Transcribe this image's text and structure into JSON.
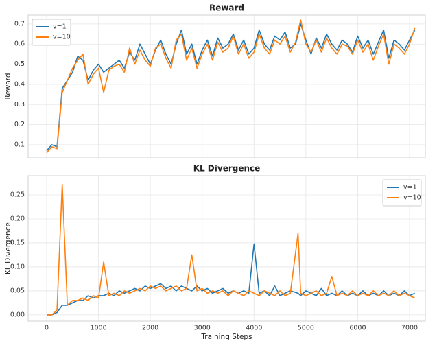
{
  "chart_data": [
    {
      "type": "line",
      "title": "Reward",
      "ylabel": "Reward",
      "x": [
        0,
        100,
        200,
        300,
        400,
        500,
        600,
        700,
        800,
        900,
        1000,
        1100,
        1200,
        1300,
        1400,
        1500,
        1600,
        1700,
        1800,
        1900,
        2000,
        2100,
        2200,
        2300,
        2400,
        2500,
        2600,
        2700,
        2800,
        2900,
        3000,
        3100,
        3200,
        3300,
        3400,
        3500,
        3600,
        3700,
        3800,
        3900,
        4000,
        4100,
        4200,
        4300,
        4400,
        4500,
        4600,
        4700,
        4800,
        4900,
        5000,
        5100,
        5200,
        5300,
        5400,
        5500,
        5600,
        5700,
        5800,
        5900,
        6000,
        6100,
        6200,
        6300,
        6400,
        6500,
        6600,
        6700,
        6800,
        6900,
        7000,
        7100
      ],
      "series": [
        {
          "name": "v=1",
          "color": "#1f77b4",
          "values": [
            0.07,
            0.1,
            0.09,
            0.38,
            0.42,
            0.46,
            0.54,
            0.52,
            0.42,
            0.47,
            0.5,
            0.46,
            0.48,
            0.5,
            0.52,
            0.48,
            0.56,
            0.52,
            0.6,
            0.55,
            0.5,
            0.57,
            0.62,
            0.55,
            0.5,
            0.6,
            0.67,
            0.55,
            0.6,
            0.5,
            0.57,
            0.62,
            0.54,
            0.63,
            0.58,
            0.6,
            0.65,
            0.57,
            0.62,
            0.55,
            0.58,
            0.67,
            0.6,
            0.57,
            0.64,
            0.62,
            0.66,
            0.58,
            0.6,
            0.7,
            0.62,
            0.55,
            0.63,
            0.58,
            0.65,
            0.6,
            0.57,
            0.62,
            0.6,
            0.56,
            0.64,
            0.58,
            0.62,
            0.55,
            0.61,
            0.67,
            0.53,
            0.62,
            0.6,
            0.57,
            0.62,
            0.67
          ]
        },
        {
          "name": "v=10",
          "color": "#ff7f0e",
          "values": [
            0.06,
            0.09,
            0.08,
            0.36,
            0.42,
            0.48,
            0.52,
            0.55,
            0.4,
            0.45,
            0.48,
            0.36,
            0.47,
            0.49,
            0.5,
            0.46,
            0.58,
            0.5,
            0.57,
            0.52,
            0.49,
            0.58,
            0.6,
            0.53,
            0.48,
            0.62,
            0.65,
            0.52,
            0.58,
            0.48,
            0.55,
            0.6,
            0.52,
            0.61,
            0.56,
            0.58,
            0.64,
            0.55,
            0.6,
            0.53,
            0.56,
            0.65,
            0.58,
            0.55,
            0.62,
            0.6,
            0.64,
            0.56,
            0.61,
            0.72,
            0.6,
            0.56,
            0.62,
            0.56,
            0.63,
            0.58,
            0.55,
            0.6,
            0.59,
            0.55,
            0.62,
            0.56,
            0.6,
            0.52,
            0.59,
            0.65,
            0.5,
            0.6,
            0.58,
            0.55,
            0.6,
            0.68
          ]
        }
      ],
      "xlim": [
        -357,
        7304
      ],
      "xticks": [
        0,
        1000,
        2000,
        3000,
        4000,
        5000,
        6000,
        7000
      ],
      "ylim": [
        0.035,
        0.744
      ],
      "yticks": [
        0.1,
        0.2,
        0.3,
        0.4,
        0.5,
        0.6,
        0.7
      ],
      "grid": true,
      "legend": "upper left"
    },
    {
      "type": "line",
      "title": "KL Divergence",
      "ylabel": "KL Divergence",
      "xlabel": "Training Steps",
      "x": [
        0,
        100,
        200,
        300,
        400,
        500,
        600,
        700,
        800,
        900,
        1000,
        1100,
        1200,
        1300,
        1400,
        1500,
        1600,
        1700,
        1800,
        1900,
        2000,
        2100,
        2200,
        2300,
        2400,
        2500,
        2600,
        2700,
        2800,
        2900,
        3000,
        3100,
        3200,
        3300,
        3400,
        3500,
        3600,
        3700,
        3800,
        3900,
        4000,
        4100,
        4200,
        4300,
        4400,
        4500,
        4600,
        4700,
        4850,
        4900,
        5000,
        5100,
        5200,
        5300,
        5400,
        5500,
        5600,
        5700,
        5800,
        5900,
        6000,
        6100,
        6200,
        6300,
        6400,
        6500,
        6600,
        6700,
        6800,
        6900,
        7000,
        7100
      ],
      "series": [
        {
          "name": "v=1",
          "color": "#1f77b4",
          "values": [
            0,
            0,
            0.005,
            0.02,
            0.02,
            0.025,
            0.03,
            0.03,
            0.04,
            0.035,
            0.04,
            0.04,
            0.045,
            0.04,
            0.05,
            0.045,
            0.05,
            0.055,
            0.05,
            0.06,
            0.055,
            0.06,
            0.065,
            0.055,
            0.06,
            0.05,
            0.06,
            0.055,
            0.05,
            0.06,
            0.05,
            0.055,
            0.045,
            0.05,
            0.055,
            0.045,
            0.05,
            0.045,
            0.05,
            0.045,
            0.148,
            0.045,
            0.05,
            0.04,
            0.06,
            0.04,
            0.045,
            0.05,
            0.045,
            0.04,
            0.05,
            0.045,
            0.04,
            0.055,
            0.04,
            0.045,
            0.04,
            0.05,
            0.04,
            0.045,
            0.04,
            0.05,
            0.04,
            0.045,
            0.04,
            0.05,
            0.04,
            0.045,
            0.04,
            0.05,
            0.04,
            0.045
          ]
        },
        {
          "name": "v=10",
          "color": "#ff7f0e",
          "values": [
            0,
            0,
            0.01,
            0.272,
            0.02,
            0.03,
            0.03,
            0.035,
            0.03,
            0.04,
            0.035,
            0.11,
            0.04,
            0.045,
            0.04,
            0.05,
            0.045,
            0.05,
            0.055,
            0.05,
            0.06,
            0.055,
            0.06,
            0.05,
            0.055,
            0.06,
            0.05,
            0.055,
            0.125,
            0.05,
            0.055,
            0.045,
            0.05,
            0.045,
            0.05,
            0.04,
            0.05,
            0.045,
            0.04,
            0.05,
            0.045,
            0.04,
            0.05,
            0.045,
            0.04,
            0.05,
            0.04,
            0.045,
            0.17,
            0.045,
            0.04,
            0.045,
            0.05,
            0.04,
            0.045,
            0.08,
            0.04,
            0.045,
            0.04,
            0.05,
            0.04,
            0.045,
            0.04,
            0.05,
            0.04,
            0.045,
            0.04,
            0.05,
            0.04,
            0.045,
            0.04,
            0.035
          ]
        }
      ],
      "xlim": [
        -357,
        7304
      ],
      "xticks": [
        0,
        1000,
        2000,
        3000,
        4000,
        5000,
        6000,
        7000
      ],
      "ylim": [
        -0.013,
        0.29
      ],
      "yticks": [
        {
          "value": 0,
          "label": "0.00"
        },
        {
          "value": 0.05,
          "label": "0.05"
        },
        {
          "value": 0.1,
          "label": "0.10"
        },
        {
          "value": 0.15,
          "label": "0.15"
        },
        {
          "value": 0.2,
          "label": "0.20"
        },
        {
          "value": 0.25,
          "label": "0.25"
        }
      ],
      "grid": true,
      "legend": "upper right"
    }
  ]
}
